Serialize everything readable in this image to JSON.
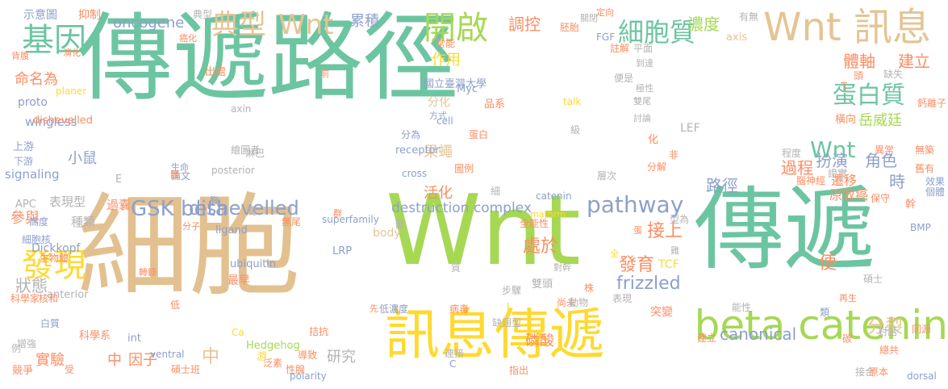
{
  "words": [
    {
      "text": "傳遞路徑",
      "color": "#6cc5a1"
    },
    {
      "text": "細胞",
      "color": "#e3c08f"
    },
    {
      "text": "Wnt",
      "color": "#a6d854"
    },
    {
      "text": "傳遞",
      "color": "#6cc5a1"
    },
    {
      "text": "訊息傳遞",
      "color": "#ffd92f"
    },
    {
      "text": "beta catenin",
      "color": "#a6d854"
    },
    {
      "text": "Wnt 訊息",
      "color": "#e5c494"
    },
    {
      "text": "開啟",
      "color": "#a6d854"
    },
    {
      "text": "基因",
      "color": "#6cc5a1"
    },
    {
      "text": "典型",
      "color": "#e5c494"
    },
    {
      "text": "Wnt",
      "color": "#e5c494"
    },
    {
      "text": "發現",
      "color": "#ffd92f"
    },
    {
      "text": "細胞質",
      "color": "#6cc5a1"
    },
    {
      "text": "蛋白質",
      "color": "#6cc5a1"
    },
    {
      "text": "Wnt",
      "color": "#6cc5a1"
    },
    {
      "text": "pathway",
      "color": "#8da0cb"
    },
    {
      "text": "GSK beta",
      "color": "#8da0cb"
    },
    {
      "text": "dishevelled",
      "color": "#8da0cb"
    },
    {
      "text": "frizzled",
      "color": "#8da0cb"
    },
    {
      "text": "canonical",
      "color": "#8da0cb"
    },
    {
      "text": "destruction complex",
      "color": "#8da0cb"
    },
    {
      "text": "oncogene",
      "color": "#8da0cb"
    },
    {
      "text": "累積",
      "color": "#8da0cb"
    },
    {
      "text": "調控",
      "color": "#fc8d62"
    },
    {
      "text": "濃度",
      "color": "#a6d854"
    },
    {
      "text": "體軸",
      "color": "#fc8d62"
    },
    {
      "text": "建立",
      "color": "#fc8d62"
    },
    {
      "text": "岳威廷",
      "color": "#a6d854"
    },
    {
      "text": "扮演",
      "color": "#8da0cb"
    },
    {
      "text": "角色",
      "color": "#8da0cb"
    },
    {
      "text": "路徑",
      "color": "#8da0cb"
    },
    {
      "text": "過程",
      "color": "#fc8d62"
    },
    {
      "text": "時",
      "color": "#8da0cb"
    },
    {
      "text": "遷移",
      "color": "#fc8d62"
    },
    {
      "text": "原致癌",
      "color": "#fc8d62"
    },
    {
      "text": "作用",
      "color": "#ffd92f"
    },
    {
      "text": "果蠅",
      "color": "#e5c494"
    },
    {
      "text": "活化",
      "color": "#fc8d62"
    },
    {
      "text": "接上",
      "color": "#fc8d62"
    },
    {
      "text": "處於",
      "color": "#fc8d62"
    },
    {
      "text": "發育",
      "color": "#fc8d62"
    },
    {
      "text": "便",
      "color": "#fc8d62"
    },
    {
      "text": "分裂",
      "color": "#e5c494"
    },
    {
      "text": "小鼠",
      "color": "#8da0cb"
    },
    {
      "text": "命名為",
      "color": "#fc8d62"
    },
    {
      "text": "wingless",
      "color": "#8da0cb"
    },
    {
      "text": "signaling",
      "color": "#8da0cb"
    },
    {
      "text": "表現型",
      "color": "#b3b3b3"
    },
    {
      "text": "參與",
      "color": "#fc8d62"
    },
    {
      "text": "種類",
      "color": "#b3b3b3"
    },
    {
      "text": "狀態",
      "color": "#b3b3b3"
    },
    {
      "text": "實驗",
      "color": "#fc8d62"
    },
    {
      "text": "中",
      "color": "#fc8d62"
    },
    {
      "text": "因子",
      "color": "#fc8d62"
    },
    {
      "text": "研究",
      "color": "#b3b3b3"
    },
    {
      "text": "磷酸",
      "color": "#fc8d62"
    },
    {
      "text": "中",
      "color": "#e5c494"
    },
    {
      "text": "分化",
      "color": "#e5c494"
    },
    {
      "text": "抑制",
      "color": "#fc8d62"
    },
    {
      "text": "示意圖",
      "color": "#8da0cb"
    },
    {
      "text": "proto",
      "color": "#8da0cb"
    },
    {
      "text": "Dickkopf",
      "color": "#8da0cb"
    },
    {
      "text": "過囊",
      "color": "#fc8d62"
    },
    {
      "text": "最早",
      "color": "#fc8d62"
    },
    {
      "text": "突變",
      "color": "#fc8d62"
    },
    {
      "text": "LEF",
      "color": "#b3b3b3"
    },
    {
      "text": "TCF",
      "color": "#ffd92f"
    },
    {
      "text": "body",
      "color": "#e5c494"
    },
    {
      "text": "axis",
      "color": "#e5c494"
    },
    {
      "text": "receptor",
      "color": "#8da0cb"
    },
    {
      "text": "superfamily",
      "color": "#8da0cb"
    },
    {
      "text": "Hedgehog",
      "color": "#a6d854"
    },
    {
      "text": "ubiquitin",
      "color": "#8da0cb"
    },
    {
      "text": "ligand",
      "color": "#8da0cb"
    },
    {
      "text": "LRP",
      "color": "#8da0cb"
    },
    {
      "text": "Myc",
      "color": "#8da0cb"
    },
    {
      "text": "mathrm",
      "color": "#ffd92f"
    },
    {
      "text": "catenin",
      "color": "#8da0cb"
    },
    {
      "text": "cross",
      "color": "#8da0cb"
    },
    {
      "text": "posterior",
      "color": "#b3b3b3"
    },
    {
      "text": "anterior",
      "color": "#b3b3b3"
    },
    {
      "text": "planer",
      "color": "#ffd92f"
    },
    {
      "text": "polarity",
      "color": "#8da0cb"
    },
    {
      "text": "dorsal",
      "color": "#8da0cb"
    },
    {
      "text": "dishevelled",
      "color": "#fc8d62"
    },
    {
      "text": "BMP",
      "color": "#8da0cb"
    },
    {
      "text": "FGF",
      "color": "#8da0cb"
    },
    {
      "text": "APC",
      "color": "#b3b3b3"
    },
    {
      "text": "ventral",
      "color": "#8da0cb"
    },
    {
      "text": "cell",
      "color": "#8da0cb"
    },
    {
      "text": "axin",
      "color": "#b3b3b3"
    },
    {
      "text": "國立臺灣大學",
      "color": "#8da0cb"
    },
    {
      "text": "品系",
      "color": "#fc8d62"
    },
    {
      "text": "關閉",
      "color": "#b3b3b3"
    },
    {
      "text": "胚胎",
      "color": "#fc8d62"
    },
    {
      "text": "常能",
      "color": "#fc8d62"
    },
    {
      "text": "註解",
      "color": "#fc8d62"
    },
    {
      "text": "平面",
      "color": "#b3b3b3"
    },
    {
      "text": "到達",
      "color": "#b3b3b3"
    },
    {
      "text": "極性",
      "color": "#b3b3b3"
    },
    {
      "text": "雙尾",
      "color": "#b3b3b3"
    },
    {
      "text": "討論",
      "color": "#b3b3b3"
    },
    {
      "text": "缺失",
      "color": "#b3b3b3"
    },
    {
      "text": "鈣離子",
      "color": "#fc8d62"
    },
    {
      "text": "橫向",
      "color": "#fc8d62"
    },
    {
      "text": "幹",
      "color": "#fc8d62"
    },
    {
      "text": "上游",
      "color": "#8da0cb"
    },
    {
      "text": "下游",
      "color": "#8da0cb"
    },
    {
      "text": "高度",
      "color": "#8da0cb"
    },
    {
      "text": "細胞核",
      "color": "#8da0cb"
    },
    {
      "text": "生物體",
      "color": "#fc8d62"
    },
    {
      "text": "科學家",
      "color": "#fc8d62"
    },
    {
      "text": "核和",
      "color": "#fc8d62"
    },
    {
      "text": "白質",
      "color": "#8da0cb"
    },
    {
      "text": "增強",
      "color": "#b3b3b3"
    },
    {
      "text": "競爭",
      "color": "#fc8d62"
    },
    {
      "text": "科學系",
      "color": "#fc8d62"
    },
    {
      "text": "碩士班",
      "color": "#fc8d62"
    },
    {
      "text": "缺翅型",
      "color": "#b3b3b3"
    },
    {
      "text": "連接",
      "color": "#b3b3b3"
    },
    {
      "text": "指出",
      "color": "#fc8d62"
    },
    {
      "text": "病毒",
      "color": "#fc8d62"
    },
    {
      "text": "低濃度",
      "color": "#8da0cb"
    },
    {
      "text": "導致",
      "color": "#fc8d62"
    },
    {
      "text": "性腺",
      "color": "#fc8d62"
    },
    {
      "text": "泛素",
      "color": "#fc8d62"
    },
    {
      "text": "拮抗",
      "color": "#fc8d62"
    },
    {
      "text": "雙頭",
      "color": "#b3b3b3"
    },
    {
      "text": "尚未",
      "color": "#fc8d62"
    },
    {
      "text": "動物",
      "color": "#b3b3b3"
    },
    {
      "text": "表現",
      "color": "#b3b3b3"
    },
    {
      "text": "對幹",
      "color": "#b3b3b3"
    },
    {
      "text": "步驟",
      "color": "#b3b3b3"
    },
    {
      "text": "型為",
      "color": "#b3b3b3"
    },
    {
      "text": "無尾",
      "color": "#fc8d62"
    },
    {
      "text": "分子",
      "color": "#fc8d62"
    },
    {
      "text": "轉錄",
      "color": "#fc8d62"
    },
    {
      "text": "淋巴",
      "color": "#b3b3b3"
    },
    {
      "text": "繪圖者",
      "color": "#b3b3b3"
    },
    {
      "text": "生命",
      "color": "#8da0cb"
    },
    {
      "text": "論文",
      "color": "#8da0cb"
    },
    {
      "text": "分為",
      "color": "#8da0cb"
    },
    {
      "text": "蛋白",
      "color": "#fc8d62"
    },
    {
      "text": "方式",
      "color": "#8da0cb"
    },
    {
      "text": "圖例",
      "color": "#fc8d62"
    },
    {
      "text": "層次",
      "color": "#b3b3b3"
    },
    {
      "text": "分解",
      "color": "#fc8d62"
    },
    {
      "text": "非",
      "color": "#fc8d62"
    },
    {
      "text": "程度",
      "color": "#b3b3b3"
    },
    {
      "text": "證實",
      "color": "#b3b3b3"
    },
    {
      "text": "異常",
      "color": "#fc8d62"
    },
    {
      "text": "無築",
      "color": "#fc8d62"
    },
    {
      "text": "舊有",
      "color": "#fc8d62"
    },
    {
      "text": "效果",
      "color": "#8da0cb"
    },
    {
      "text": "個體",
      "color": "#8da0cb"
    },
    {
      "text": "保守",
      "color": "#fc8d62"
    },
    {
      "text": "腦神經",
      "color": "#fc8d62"
    },
    {
      "text": "碩士",
      "color": "#b3b3b3"
    },
    {
      "text": "再生",
      "color": "#fc8d62"
    },
    {
      "text": "類",
      "color": "#8da0cb"
    },
    {
      "text": "對話",
      "color": "#b3b3b3"
    },
    {
      "text": "總共",
      "color": "#fc8d62"
    },
    {
      "text": "同源",
      "color": "#fc8d62"
    },
    {
      "text": "接合",
      "color": "#b3b3b3"
    },
    {
      "text": "原本",
      "color": "#fc8d62"
    },
    {
      "text": "建立",
      "color": "#fc8d62"
    },
    {
      "text": "能性",
      "color": "#b3b3b3"
    },
    {
      "text": "皆",
      "color": "#b3b3b3"
    },
    {
      "text": "全能性",
      "color": "#fc8d62"
    },
    {
      "text": "群",
      "color": "#fc8d62"
    },
    {
      "text": "簡",
      "color": "#b3b3b3"
    },
    {
      "text": "胸",
      "color": "#8da0cb"
    },
    {
      "text": "出處",
      "color": "#fc8d62"
    },
    {
      "text": "癌化",
      "color": "#fc8d62"
    },
    {
      "text": "背腹",
      "color": "#fc8d62"
    },
    {
      "text": "演化",
      "color": "#fc8d62"
    },
    {
      "text": "頭",
      "color": "#fc8d62"
    },
    {
      "text": "定向",
      "color": "#fc8d62"
    },
    {
      "text": "有無",
      "color": "#b3b3b3"
    },
    {
      "text": "典型",
      "color": "#b3b3b3"
    },
    {
      "text": "talk",
      "color": "#ffd92f"
    },
    {
      "text": "級",
      "color": "#b3b3b3"
    },
    {
      "text": "便是",
      "color": "#b3b3b3"
    },
    {
      "text": "化",
      "color": "#fc8d62"
    },
    {
      "text": "前",
      "color": "#fc8d62"
    },
    {
      "text": "細",
      "color": "#b3b3b3"
    },
    {
      "text": "游",
      "color": "#ffd92f"
    },
    {
      "text": "受",
      "color": "#fc8d62"
    },
    {
      "text": "先",
      "color": "#fc8d62"
    },
    {
      "text": "株",
      "color": "#fc8d62"
    },
    {
      "text": "低",
      "color": "#fc8d62"
    },
    {
      "text": "全",
      "color": "#ffd92f"
    },
    {
      "text": "雞",
      "color": "#b3b3b3"
    },
    {
      "text": "質",
      "color": "#b3b3b3"
    },
    {
      "text": "碳",
      "color": "#fc8d62"
    },
    {
      "text": "例",
      "color": "#b3b3b3"
    },
    {
      "text": "int",
      "color": "#8da0cb"
    },
    {
      "text": "E",
      "color": "#b3b3b3"
    },
    {
      "text": "C",
      "color": "#8da0cb"
    },
    {
      "text": "T",
      "color": "#fc8d62"
    },
    {
      "text": "L",
      "color": "#ffd92f"
    },
    {
      "text": "Ca",
      "color": "#ffd92f"
    },
    {
      "text": "體",
      "color": "#fc8d62"
    },
    {
      "text": "蛋",
      "color": "#fc8d62"
    },
    {
      "text": "分類",
      "color": "#b3b3b3"
    }
  ]
}
